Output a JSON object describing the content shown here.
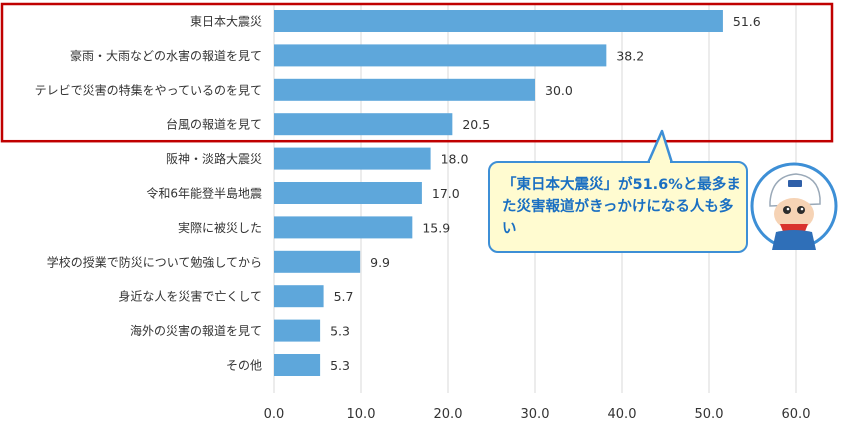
{
  "chart_data": {
    "type": "bar",
    "orientation": "horizontal",
    "categories": [
      "東日本大震災",
      "豪雨・大雨などの水害の報道を見て",
      "テレビで災害の特集をやっているのを見て",
      "台風の報道を見て",
      "阪神・淡路大震災",
      "令和6年能登半島地震",
      "実際に被災した",
      "学校の授業で防災について勉強してから",
      "身近な人を災害で亡くして",
      "海外の災害の報道を見て",
      "その他"
    ],
    "values": [
      51.6,
      38.2,
      30.0,
      20.5,
      18.0,
      17.0,
      15.9,
      9.9,
      5.7,
      5.3,
      5.3
    ],
    "value_labels": [
      "51.6",
      "38.2",
      "30.0",
      "20.5",
      "18.0",
      "17.0",
      "15.9",
      "9.9",
      "5.7",
      "5.3",
      "5.3"
    ],
    "xlim": [
      0,
      60
    ],
    "ticks": [
      "0.0",
      "10.0",
      "20.0",
      "30.0",
      "40.0",
      "50.0",
      "60.0"
    ],
    "grid": true,
    "bar_color": "#5ea7db",
    "highlight_color": "#c00000",
    "highlight_count": 4
  },
  "callout": {
    "text": "「東日本大震災」が51.6%と最多また災害報道がきっかけになる人も多い",
    "border_color": "#3d8fd6",
    "text_color": "#1a6fc2",
    "background": "#fffbd0"
  },
  "mascot": {
    "icon": "mascot-character-icon"
  }
}
